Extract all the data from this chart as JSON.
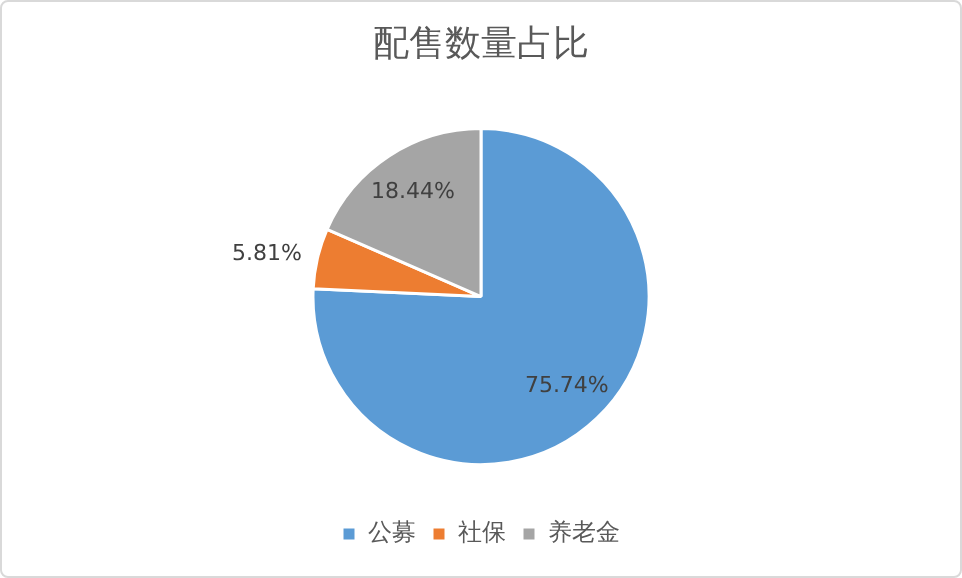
{
  "chart_data": {
    "type": "pie",
    "title": "配售数量占比",
    "categories": [
      "公募",
      "社保",
      "养老金"
    ],
    "values": [
      75.74,
      5.81,
      18.44
    ],
    "value_labels": [
      "75.74%",
      "5.81%",
      "18.44%"
    ],
    "colors": [
      "#5b9bd5",
      "#ed7d31",
      "#a5a5a5"
    ],
    "legend": "bottom"
  }
}
